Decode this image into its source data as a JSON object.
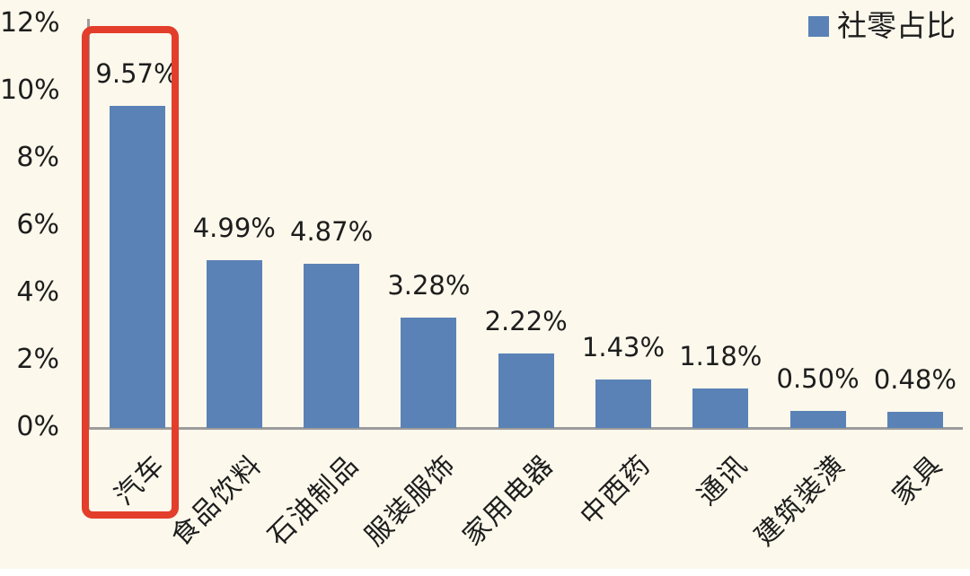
{
  "chart_data": {
    "type": "bar",
    "title": "",
    "legend": "社零占比",
    "legend_position": "top-right",
    "categories": [
      "汽车",
      "食品饮料",
      "石油制品",
      "服装服饰",
      "家用电器",
      "中西药",
      "通讯",
      "建筑装潢",
      "家具"
    ],
    "values": [
      9.57,
      4.99,
      4.87,
      3.28,
      2.22,
      1.43,
      1.18,
      0.5,
      0.48
    ],
    "value_labels": [
      "9.57%",
      "4.99%",
      "4.87%",
      "3.28%",
      "2.22%",
      "1.43%",
      "1.18%",
      "0.50%",
      "0.48%"
    ],
    "xlabel": "",
    "ylabel": "",
    "ylim": [
      0,
      12
    ],
    "ytick_labels": [
      "0%",
      "2%",
      "4%",
      "6%",
      "8%",
      "10%",
      "12%"
    ],
    "grid": false,
    "annotations": [
      {
        "type": "highlight-box",
        "target": "汽车",
        "description": "red rounded rectangle outlining the first bar and its category label"
      }
    ]
  },
  "colors": {
    "background": "#fcf8ec",
    "bar": "#5b82b6",
    "highlight": "#e23e2b",
    "axis": "#9c9c9c",
    "text": "#1d1d1d"
  }
}
